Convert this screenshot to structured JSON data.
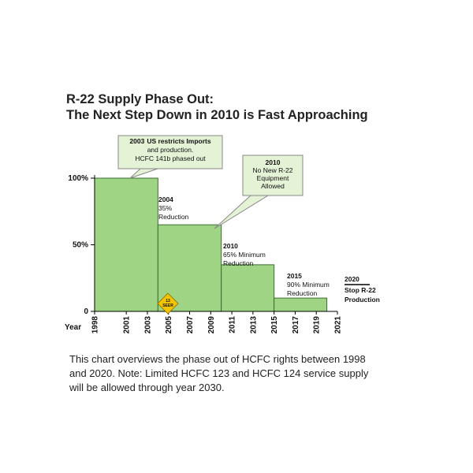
{
  "chart_data": {
    "type": "histogram",
    "title": [
      "R-22 Supply Phase Out:",
      "The Next Step Down in 2010 is Fast Approaching"
    ],
    "x_label": "Year",
    "bins": [
      1998,
      2004,
      2010,
      2015,
      2020
    ],
    "values": [
      100,
      65,
      35,
      10
    ],
    "color": "#9fd484",
    "edge_color": "#3a6e30",
    "xlim": [
      1998,
      2021
    ],
    "xticks": [
      1998,
      2001,
      2003,
      2005,
      2007,
      2009,
      2011,
      2013,
      2015,
      2017,
      2019,
      2021
    ],
    "ylim": [
      0,
      100
    ],
    "yticks": [
      0,
      {
        "value": 50,
        "label": "50%"
      },
      {
        "value": 100,
        "label": "100%"
      }
    ],
    "annotations": [
      {
        "year": "2003",
        "lines": [
          "US restricts Imports",
          "and production.",
          "HCFC 141b phased out"
        ]
      },
      {
        "year": "2010",
        "lines": [
          "No New R-22",
          "Equipment",
          "Allowed"
        ]
      },
      {
        "year": "2004",
        "lines": [
          "35%",
          "Reduction"
        ]
      },
      {
        "year": "2010",
        "lines": [
          "65% Minimum",
          "Reduction"
        ]
      },
      {
        "year": "2015",
        "lines": [
          "90% Minimum",
          "Reduction"
        ]
      },
      {
        "year": "2020",
        "lines": [
          "Stop R-22",
          "Production"
        ]
      }
    ],
    "badge": [
      "13",
      "SEER"
    ],
    "caption": [
      "This chart overviews the phase out of HCFC rights between 1998",
      "and 2020. Note:  Limited HCFC 123 and HCFC 124 service supply",
      "will be allowed through year 2030."
    ]
  }
}
